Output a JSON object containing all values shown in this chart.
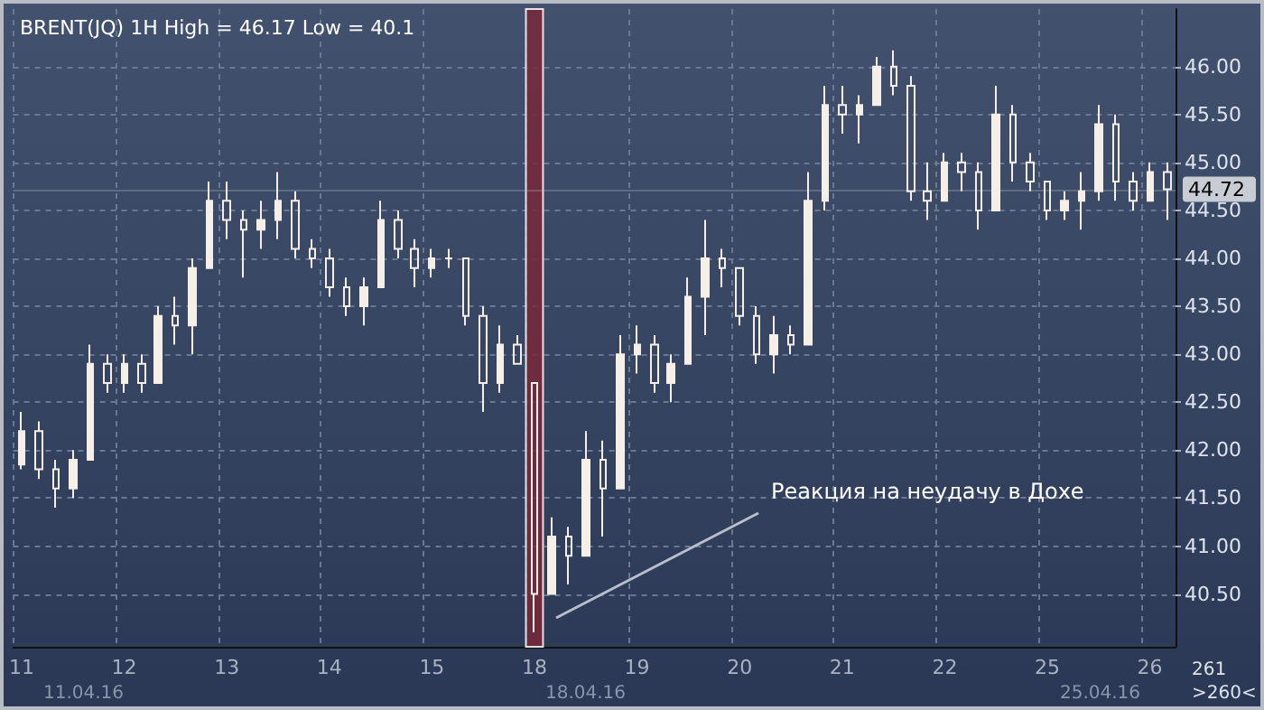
{
  "chart_data": {
    "type": "candlestick",
    "title": "BRENT(JQ) 1H High = 46.17 Low = 40.1",
    "categories": [
      "11",
      null,
      null,
      null,
      null,
      null,
      "12",
      null,
      null,
      null,
      null,
      null,
      "13",
      null,
      null,
      null,
      null,
      null,
      "14",
      null,
      null,
      null,
      null,
      null,
      "15",
      null,
      null,
      null,
      null,
      null,
      "18",
      null,
      null,
      null,
      null,
      null,
      "19",
      null,
      null,
      null,
      null,
      null,
      "20",
      null,
      null,
      null,
      null,
      null,
      "21",
      null,
      null,
      null,
      null,
      null,
      "22",
      null,
      null,
      null,
      null,
      null,
      "25",
      null,
      null,
      null,
      null,
      null,
      "26",
      null
    ],
    "ohlc": [
      [
        41.85,
        42.4,
        41.8,
        42.2
      ],
      [
        42.2,
        42.3,
        41.7,
        41.8
      ],
      [
        41.8,
        41.9,
        41.4,
        41.6
      ],
      [
        41.6,
        42.0,
        41.5,
        41.9
      ],
      [
        41.9,
        43.1,
        41.9,
        42.9
      ],
      [
        42.9,
        43.0,
        42.6,
        42.7
      ],
      [
        42.7,
        43.0,
        42.6,
        42.9
      ],
      [
        42.9,
        43.0,
        42.6,
        42.7
      ],
      [
        42.7,
        43.5,
        42.7,
        43.4
      ],
      [
        43.4,
        43.6,
        43.1,
        43.3
      ],
      [
        43.3,
        44.0,
        43.0,
        43.9
      ],
      [
        43.9,
        44.8,
        43.9,
        44.6
      ],
      [
        44.6,
        44.8,
        44.2,
        44.4
      ],
      [
        44.4,
        44.5,
        43.8,
        44.3
      ],
      [
        44.3,
        44.6,
        44.1,
        44.4
      ],
      [
        44.4,
        44.9,
        44.2,
        44.6
      ],
      [
        44.6,
        44.7,
        44.0,
        44.1
      ],
      [
        44.1,
        44.2,
        43.9,
        44.0
      ],
      [
        44.0,
        44.1,
        43.6,
        43.7
      ],
      [
        43.7,
        43.8,
        43.4,
        43.5
      ],
      [
        43.5,
        43.8,
        43.3,
        43.7
      ],
      [
        43.7,
        44.6,
        43.7,
        44.4
      ],
      [
        44.4,
        44.5,
        44.0,
        44.1
      ],
      [
        44.1,
        44.2,
        43.7,
        43.9
      ],
      [
        43.9,
        44.1,
        43.8,
        44.0
      ],
      [
        44.0,
        44.1,
        43.9,
        44.0
      ],
      [
        44.0,
        44.0,
        43.3,
        43.4
      ],
      [
        43.4,
        43.5,
        42.4,
        42.7
      ],
      [
        42.7,
        43.3,
        42.6,
        43.1
      ],
      [
        43.1,
        43.2,
        42.9,
        42.9
      ],
      [
        42.7,
        42.7,
        40.1,
        40.5
      ],
      [
        40.5,
        41.3,
        40.5,
        41.1
      ],
      [
        41.1,
        41.2,
        40.6,
        40.9
      ],
      [
        40.9,
        42.2,
        40.9,
        41.9
      ],
      [
        41.9,
        42.1,
        41.1,
        41.6
      ],
      [
        41.6,
        43.2,
        41.6,
        43.0
      ],
      [
        43.0,
        43.3,
        42.8,
        43.1
      ],
      [
        43.1,
        43.2,
        42.6,
        42.7
      ],
      [
        42.7,
        43.0,
        42.5,
        42.9
      ],
      [
        42.9,
        43.8,
        42.9,
        43.6
      ],
      [
        43.6,
        44.4,
        43.2,
        44.0
      ],
      [
        44.0,
        44.1,
        43.7,
        43.9
      ],
      [
        43.9,
        43.9,
        43.3,
        43.4
      ],
      [
        43.4,
        43.5,
        42.9,
        43.0
      ],
      [
        43.0,
        43.4,
        42.8,
        43.2
      ],
      [
        43.2,
        43.3,
        43.0,
        43.1
      ],
      [
        43.1,
        44.9,
        43.1,
        44.6
      ],
      [
        44.6,
        45.8,
        44.5,
        45.6
      ],
      [
        45.6,
        45.8,
        45.3,
        45.5
      ],
      [
        45.5,
        45.7,
        45.2,
        45.6
      ],
      [
        45.6,
        46.1,
        45.6,
        46.0
      ],
      [
        46.0,
        46.17,
        45.7,
        45.8
      ],
      [
        45.8,
        45.9,
        44.6,
        44.7
      ],
      [
        44.7,
        45.0,
        44.4,
        44.6
      ],
      [
        44.6,
        45.1,
        44.6,
        45.0
      ],
      [
        45.0,
        45.1,
        44.7,
        44.9
      ],
      [
        44.9,
        45.0,
        44.3,
        44.5
      ],
      [
        44.5,
        45.8,
        44.5,
        45.5
      ],
      [
        45.5,
        45.6,
        44.8,
        45.0
      ],
      [
        45.0,
        45.1,
        44.7,
        44.8
      ],
      [
        44.8,
        44.8,
        44.4,
        44.5
      ],
      [
        44.5,
        44.7,
        44.4,
        44.6
      ],
      [
        44.6,
        44.9,
        44.3,
        44.7
      ],
      [
        44.7,
        45.6,
        44.6,
        45.4
      ],
      [
        45.4,
        45.5,
        44.6,
        44.8
      ],
      [
        44.8,
        44.9,
        44.5,
        44.6
      ],
      [
        44.6,
        45.0,
        44.6,
        44.9
      ],
      [
        44.9,
        45.0,
        44.4,
        44.72
      ]
    ],
    "color": "#f5efe8",
    "ylim": [
      39.95,
      46.6
    ],
    "yticks": [
      {
        "value": 40.5,
        "label": "40.50"
      },
      {
        "value": 41,
        "label": "41.00"
      },
      {
        "value": 41.5,
        "label": "41.50"
      },
      {
        "value": 42,
        "label": "42.00"
      },
      {
        "value": 42.5,
        "label": "42.50"
      },
      {
        "value": 43,
        "label": "43.00"
      },
      {
        "value": 43.5,
        "label": "43.50"
      },
      {
        "value": 44,
        "label": "44.00"
      },
      {
        "value": 44.5,
        "label": "44.50"
      },
      {
        "value": 45,
        "label": "45.00"
      },
      {
        "value": 45.5,
        "label": "45.50"
      },
      {
        "value": 46,
        "label": "46.00"
      }
    ],
    "grid": true,
    "bands": [
      {
        "axis": "x",
        "from": "18",
        "to": "18",
        "color": "#7a2838"
      }
    ],
    "ref_lines": [
      {
        "axis": "y",
        "value": 44.72,
        "label": "44.72"
      }
    ],
    "annotations": [
      "Реакция на неудачу в Дохе",
      "11.04.16",
      "18.04.16",
      "25.04.16",
      "261",
      ">260<"
    ]
  }
}
